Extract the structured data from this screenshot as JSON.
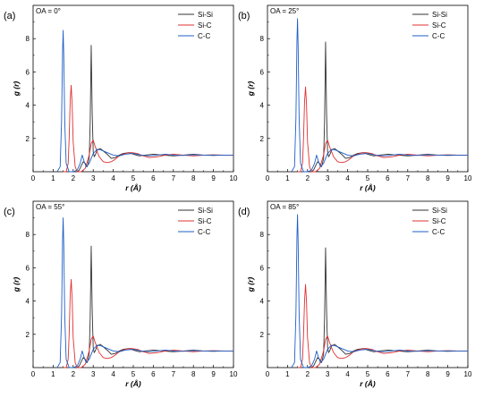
{
  "chart_data": [
    {
      "type": "line",
      "panel_label": "(a)",
      "annotation": "OA = 0°",
      "xlabel": "r (Å)",
      "ylabel": "g (r)",
      "xlim": [
        0,
        10
      ],
      "ylim": [
        0,
        10
      ],
      "xticks": [
        "0",
        "1",
        "2",
        "3",
        "4",
        "5",
        "6",
        "7",
        "8",
        "9",
        "10"
      ],
      "yticks": [
        "2",
        "4",
        "6",
        "8"
      ],
      "legend_position": "top-right",
      "grid": false,
      "series": [
        {
          "name": "Si-Si",
          "color": "#333333",
          "x": [
            2.0,
            2.2,
            2.3,
            2.4,
            2.5,
            2.6,
            2.7,
            2.8,
            2.85,
            2.9,
            2.95,
            3.0,
            3.05,
            3.1,
            3.2,
            3.35,
            3.5,
            3.7,
            3.9,
            4.1,
            4.3,
            4.5,
            4.8,
            5.0,
            5.3,
            5.6,
            6.0,
            6.5,
            7.0,
            7.5,
            8.0,
            8.5,
            9.0,
            9.5,
            10.0
          ],
          "y": [
            0,
            0,
            0.1,
            0.35,
            0.6,
            0.5,
            0.3,
            0.8,
            3.0,
            7.6,
            3.5,
            1.2,
            0.9,
            1.0,
            1.3,
            1.4,
            1.25,
            1.05,
            0.8,
            0.85,
            1.0,
            1.1,
            1.15,
            1.05,
            0.95,
            1.0,
            1.05,
            1.0,
            0.95,
            1.0,
            1.05,
            1.0,
            0.98,
            1.0,
            1.0
          ]
        },
        {
          "name": "Si-C",
          "color": "#e03030",
          "x": [
            1.5,
            1.65,
            1.75,
            1.8,
            1.85,
            1.9,
            1.95,
            2.0,
            2.1,
            2.2,
            2.4,
            2.6,
            2.8,
            2.9,
            3.0,
            3.1,
            3.3,
            3.5,
            3.7,
            3.9,
            4.1,
            4.3,
            4.6,
            4.9,
            5.2,
            5.5,
            5.8,
            6.2,
            6.6,
            7.0,
            7.5,
            8.0,
            8.5,
            9.0,
            9.5,
            10.0
          ],
          "y": [
            0,
            0,
            0.5,
            2.0,
            4.2,
            5.2,
            4.0,
            1.8,
            0.3,
            0,
            0,
            0.2,
            1.0,
            1.7,
            1.9,
            1.5,
            0.9,
            0.6,
            0.55,
            0.6,
            0.75,
            0.95,
            1.1,
            1.15,
            1.1,
            0.95,
            0.85,
            0.9,
            1.0,
            1.05,
            1.0,
            0.95,
            1.0,
            1.02,
            1.0,
            1.0
          ]
        },
        {
          "name": "C-C",
          "color": "#1f5fc8",
          "x": [
            1.2,
            1.35,
            1.42,
            1.47,
            1.5,
            1.53,
            1.58,
            1.65,
            1.8,
            2.0,
            2.2,
            2.35,
            2.45,
            2.55,
            2.65,
            2.8,
            3.0,
            3.2,
            3.4,
            3.6,
            3.8,
            4.0,
            4.3,
            4.6,
            5.0,
            5.4,
            5.8,
            6.2,
            6.6,
            7.0,
            7.5,
            8.0,
            8.5,
            9.0,
            9.5,
            10.0
          ],
          "y": [
            0,
            0.3,
            3.0,
            7.2,
            8.5,
            7.0,
            3.0,
            0.5,
            0,
            0,
            0.1,
            0.5,
            1.0,
            0.6,
            0.3,
            0.5,
            1.1,
            1.35,
            1.3,
            1.2,
            1.1,
            1.0,
            0.95,
            1.05,
            1.1,
            1.0,
            0.95,
            1.0,
            1.05,
            1.0,
            0.98,
            1.02,
            1.0,
            1.0,
            1.0,
            1.0
          ]
        }
      ]
    },
    {
      "type": "line",
      "panel_label": "(b)",
      "annotation": "OA = 25°",
      "xlabel": "r (Å)",
      "ylabel": "g (r)",
      "xlim": [
        0,
        10
      ],
      "ylim": [
        0,
        10
      ],
      "xticks": [
        "0",
        "1",
        "2",
        "3",
        "4",
        "5",
        "6",
        "7",
        "8",
        "9",
        "10"
      ],
      "yticks": [
        "2",
        "4",
        "6",
        "8"
      ],
      "legend_position": "top-right",
      "grid": false,
      "series": [
        {
          "name": "Si-Si",
          "color": "#333333",
          "x": [
            2.0,
            2.2,
            2.3,
            2.4,
            2.5,
            2.6,
            2.7,
            2.8,
            2.85,
            2.9,
            2.95,
            3.0,
            3.05,
            3.1,
            3.2,
            3.35,
            3.5,
            3.7,
            3.9,
            4.1,
            4.3,
            4.5,
            4.8,
            5.0,
            5.3,
            5.6,
            6.0,
            6.5,
            7.0,
            7.5,
            8.0,
            8.5,
            9.0,
            9.5,
            10.0
          ],
          "y": [
            0,
            0,
            0.1,
            0.35,
            0.6,
            0.5,
            0.3,
            0.8,
            3.0,
            7.8,
            3.5,
            1.2,
            0.9,
            1.0,
            1.3,
            1.4,
            1.25,
            1.05,
            0.8,
            0.85,
            1.0,
            1.1,
            1.15,
            1.05,
            0.95,
            1.0,
            1.05,
            1.0,
            0.95,
            1.0,
            1.05,
            1.0,
            0.98,
            1.0,
            1.0
          ]
        },
        {
          "name": "Si-C",
          "color": "#e03030",
          "x": [
            1.5,
            1.65,
            1.75,
            1.8,
            1.85,
            1.9,
            1.95,
            2.0,
            2.1,
            2.2,
            2.4,
            2.6,
            2.8,
            2.9,
            3.0,
            3.1,
            3.3,
            3.5,
            3.7,
            3.9,
            4.1,
            4.3,
            4.6,
            4.9,
            5.2,
            5.5,
            5.8,
            6.2,
            6.6,
            7.0,
            7.5,
            8.0,
            8.5,
            9.0,
            9.5,
            10.0
          ],
          "y": [
            0,
            0,
            0.5,
            2.0,
            4.2,
            5.1,
            4.0,
            1.8,
            0.3,
            0,
            0,
            0.2,
            1.0,
            1.7,
            1.9,
            1.5,
            0.9,
            0.6,
            0.55,
            0.6,
            0.75,
            0.95,
            1.1,
            1.15,
            1.1,
            0.95,
            0.85,
            0.9,
            1.0,
            1.05,
            1.0,
            0.95,
            1.0,
            1.02,
            1.0,
            1.0
          ]
        },
        {
          "name": "C-C",
          "color": "#1f5fc8",
          "x": [
            1.2,
            1.35,
            1.42,
            1.47,
            1.5,
            1.53,
            1.58,
            1.65,
            1.8,
            2.0,
            2.2,
            2.35,
            2.45,
            2.55,
            2.65,
            2.8,
            3.0,
            3.2,
            3.4,
            3.6,
            3.8,
            4.0,
            4.3,
            4.6,
            5.0,
            5.4,
            5.8,
            6.2,
            6.6,
            7.0,
            7.5,
            8.0,
            8.5,
            9.0,
            9.5,
            10.0
          ],
          "y": [
            0,
            0.3,
            3.2,
            7.8,
            9.2,
            7.6,
            3.2,
            0.5,
            0,
            0,
            0.1,
            0.5,
            1.0,
            0.6,
            0.3,
            0.5,
            1.1,
            1.35,
            1.3,
            1.2,
            1.1,
            1.0,
            0.95,
            1.05,
            1.1,
            1.0,
            0.95,
            1.0,
            1.05,
            1.0,
            0.98,
            1.02,
            1.0,
            1.0,
            1.0,
            1.0
          ]
        }
      ]
    },
    {
      "type": "line",
      "panel_label": "(c)",
      "annotation": "OA = 55°",
      "xlabel": "r (Å)",
      "ylabel": "g (r)",
      "xlim": [
        0,
        10
      ],
      "ylim": [
        0,
        10
      ],
      "xticks": [
        "0",
        "1",
        "2",
        "3",
        "4",
        "5",
        "6",
        "7",
        "8",
        "9",
        "10"
      ],
      "yticks": [
        "2",
        "4",
        "6",
        "8"
      ],
      "legend_position": "top-right",
      "grid": false,
      "series": [
        {
          "name": "Si-Si",
          "color": "#333333",
          "x": [
            2.0,
            2.2,
            2.3,
            2.4,
            2.5,
            2.6,
            2.7,
            2.8,
            2.85,
            2.9,
            2.95,
            3.0,
            3.05,
            3.1,
            3.2,
            3.35,
            3.5,
            3.7,
            3.9,
            4.1,
            4.3,
            4.5,
            4.8,
            5.0,
            5.3,
            5.6,
            6.0,
            6.5,
            7.0,
            7.5,
            8.0,
            8.5,
            9.0,
            9.5,
            10.0
          ],
          "y": [
            0,
            0,
            0.1,
            0.35,
            0.6,
            0.5,
            0.3,
            0.8,
            3.0,
            7.3,
            3.4,
            1.2,
            0.9,
            1.0,
            1.3,
            1.4,
            1.25,
            1.05,
            0.8,
            0.85,
            1.0,
            1.1,
            1.15,
            1.05,
            0.95,
            1.0,
            1.05,
            1.0,
            0.95,
            1.0,
            1.05,
            1.0,
            0.98,
            1.0,
            1.0
          ]
        },
        {
          "name": "Si-C",
          "color": "#e03030",
          "x": [
            1.5,
            1.65,
            1.75,
            1.8,
            1.85,
            1.9,
            1.95,
            2.0,
            2.1,
            2.2,
            2.4,
            2.6,
            2.8,
            2.9,
            3.0,
            3.1,
            3.3,
            3.5,
            3.7,
            3.9,
            4.1,
            4.3,
            4.6,
            4.9,
            5.2,
            5.5,
            5.8,
            6.2,
            6.6,
            7.0,
            7.5,
            8.0,
            8.5,
            9.0,
            9.5,
            10.0
          ],
          "y": [
            0,
            0,
            0.5,
            2.0,
            4.3,
            5.3,
            4.1,
            1.8,
            0.3,
            0,
            0,
            0.2,
            1.0,
            1.7,
            1.9,
            1.5,
            0.9,
            0.6,
            0.55,
            0.6,
            0.75,
            0.95,
            1.1,
            1.15,
            1.1,
            0.95,
            0.85,
            0.9,
            1.0,
            1.05,
            1.0,
            0.95,
            1.0,
            1.02,
            1.0,
            1.0
          ]
        },
        {
          "name": "C-C",
          "color": "#1f5fc8",
          "x": [
            1.2,
            1.35,
            1.42,
            1.47,
            1.5,
            1.53,
            1.58,
            1.65,
            1.8,
            2.0,
            2.2,
            2.35,
            2.45,
            2.55,
            2.65,
            2.8,
            3.0,
            3.2,
            3.4,
            3.6,
            3.8,
            4.0,
            4.3,
            4.6,
            5.0,
            5.4,
            5.8,
            6.2,
            6.6,
            7.0,
            7.5,
            8.0,
            8.5,
            9.0,
            9.5,
            10.0
          ],
          "y": [
            0,
            0.3,
            3.1,
            7.6,
            9.0,
            7.4,
            3.1,
            0.5,
            0,
            0,
            0.1,
            0.5,
            1.0,
            0.6,
            0.3,
            0.5,
            1.1,
            1.35,
            1.3,
            1.2,
            1.1,
            1.0,
            0.95,
            1.05,
            1.1,
            1.0,
            0.95,
            1.0,
            1.05,
            1.0,
            0.98,
            1.02,
            1.0,
            1.0,
            1.0,
            1.0
          ]
        }
      ]
    },
    {
      "type": "line",
      "panel_label": "(d)",
      "annotation": "OA = 85°",
      "xlabel": "r (Å)",
      "ylabel": "g (r)",
      "xlim": [
        0,
        10
      ],
      "ylim": [
        0,
        10
      ],
      "xticks": [
        "0",
        "1",
        "2",
        "3",
        "4",
        "5",
        "6",
        "7",
        "8",
        "9",
        "10"
      ],
      "yticks": [
        "2",
        "4",
        "6",
        "8"
      ],
      "legend_position": "top-right",
      "grid": false,
      "series": [
        {
          "name": "Si-Si",
          "color": "#333333",
          "x": [
            2.0,
            2.2,
            2.3,
            2.4,
            2.5,
            2.6,
            2.7,
            2.8,
            2.85,
            2.9,
            2.95,
            3.0,
            3.05,
            3.1,
            3.2,
            3.35,
            3.5,
            3.7,
            3.9,
            4.1,
            4.3,
            4.5,
            4.8,
            5.0,
            5.3,
            5.6,
            6.0,
            6.5,
            7.0,
            7.5,
            8.0,
            8.5,
            9.0,
            9.5,
            10.0
          ],
          "y": [
            0,
            0,
            0.1,
            0.35,
            0.6,
            0.5,
            0.3,
            0.8,
            3.0,
            7.2,
            3.4,
            1.2,
            0.9,
            1.0,
            1.3,
            1.4,
            1.25,
            1.05,
            0.8,
            0.85,
            1.0,
            1.1,
            1.15,
            1.05,
            0.95,
            1.0,
            1.05,
            1.0,
            0.95,
            1.0,
            1.05,
            1.0,
            0.98,
            1.0,
            1.0
          ]
        },
        {
          "name": "Si-C",
          "color": "#e03030",
          "x": [
            1.5,
            1.65,
            1.75,
            1.8,
            1.85,
            1.9,
            1.95,
            2.0,
            2.1,
            2.2,
            2.4,
            2.6,
            2.8,
            2.9,
            3.0,
            3.1,
            3.3,
            3.5,
            3.7,
            3.9,
            4.1,
            4.3,
            4.6,
            4.9,
            5.2,
            5.5,
            5.8,
            6.2,
            6.6,
            7.0,
            7.5,
            8.0,
            8.5,
            9.0,
            9.5,
            10.0
          ],
          "y": [
            0,
            0,
            0.5,
            2.0,
            4.0,
            5.0,
            3.9,
            1.8,
            0.3,
            0,
            0,
            0.2,
            1.0,
            1.7,
            1.9,
            1.5,
            0.9,
            0.6,
            0.55,
            0.6,
            0.75,
            0.95,
            1.1,
            1.15,
            1.1,
            0.95,
            0.85,
            0.9,
            1.0,
            1.05,
            1.0,
            0.95,
            1.0,
            1.02,
            1.0,
            1.0
          ]
        },
        {
          "name": "C-C",
          "color": "#1f5fc8",
          "x": [
            1.2,
            1.35,
            1.42,
            1.47,
            1.5,
            1.53,
            1.58,
            1.65,
            1.8,
            2.0,
            2.2,
            2.35,
            2.45,
            2.55,
            2.65,
            2.8,
            3.0,
            3.2,
            3.4,
            3.6,
            3.8,
            4.0,
            4.3,
            4.6,
            5.0,
            5.4,
            5.8,
            6.2,
            6.6,
            7.0,
            7.5,
            8.0,
            8.5,
            9.0,
            9.5,
            10.0
          ],
          "y": [
            0,
            0.3,
            3.2,
            7.8,
            9.2,
            7.6,
            3.2,
            0.5,
            0,
            0,
            0.1,
            0.5,
            1.0,
            0.6,
            0.3,
            0.5,
            1.1,
            1.35,
            1.3,
            1.2,
            1.1,
            1.0,
            0.95,
            1.05,
            1.1,
            1.0,
            0.95,
            1.0,
            1.05,
            1.0,
            0.98,
            1.02,
            1.0,
            1.0,
            1.0,
            1.0
          ]
        }
      ]
    }
  ]
}
